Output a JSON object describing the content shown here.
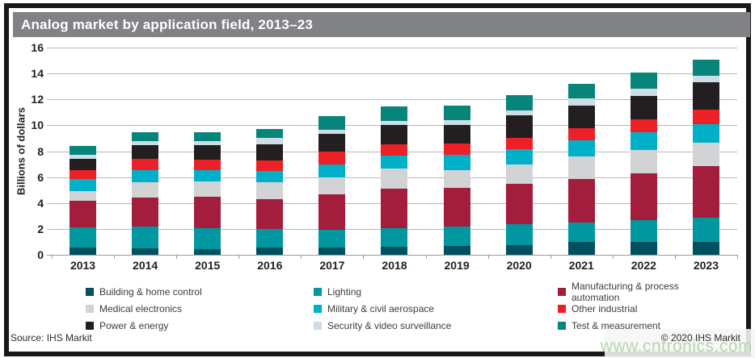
{
  "title": "Analog market by application field, 2013–23",
  "footer": {
    "source": "Source: IHS Markit",
    "copyright": "© 2020 IHS Markit",
    "watermark": "www.cntronics.com"
  },
  "colors": {
    "title_bar": "#808285",
    "frame": "#1c181a",
    "gridline": "#b8b8b8"
  },
  "chart_data": {
    "type": "bar",
    "stacked": true,
    "title": "Analog market by application field, 2013–23",
    "xlabel": "",
    "ylabel": "Billions of dollars",
    "ylim": [
      0,
      16
    ],
    "ytick_step": 2,
    "grid": true,
    "legend_position": "bottom",
    "categories": [
      "2013",
      "2014",
      "2015",
      "2016",
      "2017",
      "2018",
      "2019",
      "2020",
      "2021",
      "2022",
      "2023"
    ],
    "series": [
      {
        "name": "Building & home control",
        "color": "#00505f",
        "values": [
          0.55,
          0.5,
          0.45,
          0.55,
          0.55,
          0.65,
          0.7,
          0.75,
          1.0,
          1.0,
          1.0
        ]
      },
      {
        "name": "Lighting",
        "color": "#0097a0",
        "values": [
          1.55,
          1.65,
          1.6,
          1.45,
          1.35,
          1.4,
          1.45,
          1.6,
          1.5,
          1.7,
          1.85
        ]
      },
      {
        "name": "Manufacturing & process automation",
        "color": "#a31d3d",
        "values": [
          2.05,
          2.25,
          2.45,
          2.3,
          2.75,
          3.05,
          3.05,
          3.1,
          3.35,
          3.6,
          4.0
        ]
      },
      {
        "name": "Medical electronics",
        "color": "#d1d3d4",
        "values": [
          0.8,
          1.2,
          1.15,
          1.3,
          1.3,
          1.55,
          1.35,
          1.5,
          1.75,
          1.8,
          1.8
        ]
      },
      {
        "name": "Military & civil aerospace",
        "color": "#00b0c9",
        "values": [
          0.9,
          0.95,
          0.9,
          0.9,
          1.05,
          1.0,
          1.15,
          1.2,
          1.25,
          1.35,
          1.45
        ]
      },
      {
        "name": "Other industrial",
        "color": "#ec2027",
        "values": [
          0.7,
          0.85,
          0.8,
          0.8,
          0.95,
          0.9,
          0.9,
          0.9,
          0.95,
          1.0,
          1.1
        ]
      },
      {
        "name": "Power & energy",
        "color": "#231f20",
        "values": [
          0.85,
          1.1,
          1.15,
          1.25,
          1.4,
          1.5,
          1.4,
          1.7,
          1.7,
          1.85,
          2.1
        ]
      },
      {
        "name": "Security & video surveillance",
        "color": "#ccdde6",
        "values": [
          0.3,
          0.3,
          0.3,
          0.45,
          0.3,
          0.3,
          0.4,
          0.4,
          0.6,
          0.55,
          0.55
        ]
      },
      {
        "name": "Test & measurement",
        "color": "#07857a",
        "values": [
          0.7,
          0.65,
          0.65,
          0.7,
          1.05,
          1.1,
          1.1,
          1.2,
          1.1,
          1.25,
          1.25
        ]
      }
    ],
    "totals": [
      8.4,
      9.45,
      9.45,
      9.7,
      10.7,
      11.45,
      11.5,
      12.35,
      13.2,
      14.1,
      15.1
    ]
  }
}
